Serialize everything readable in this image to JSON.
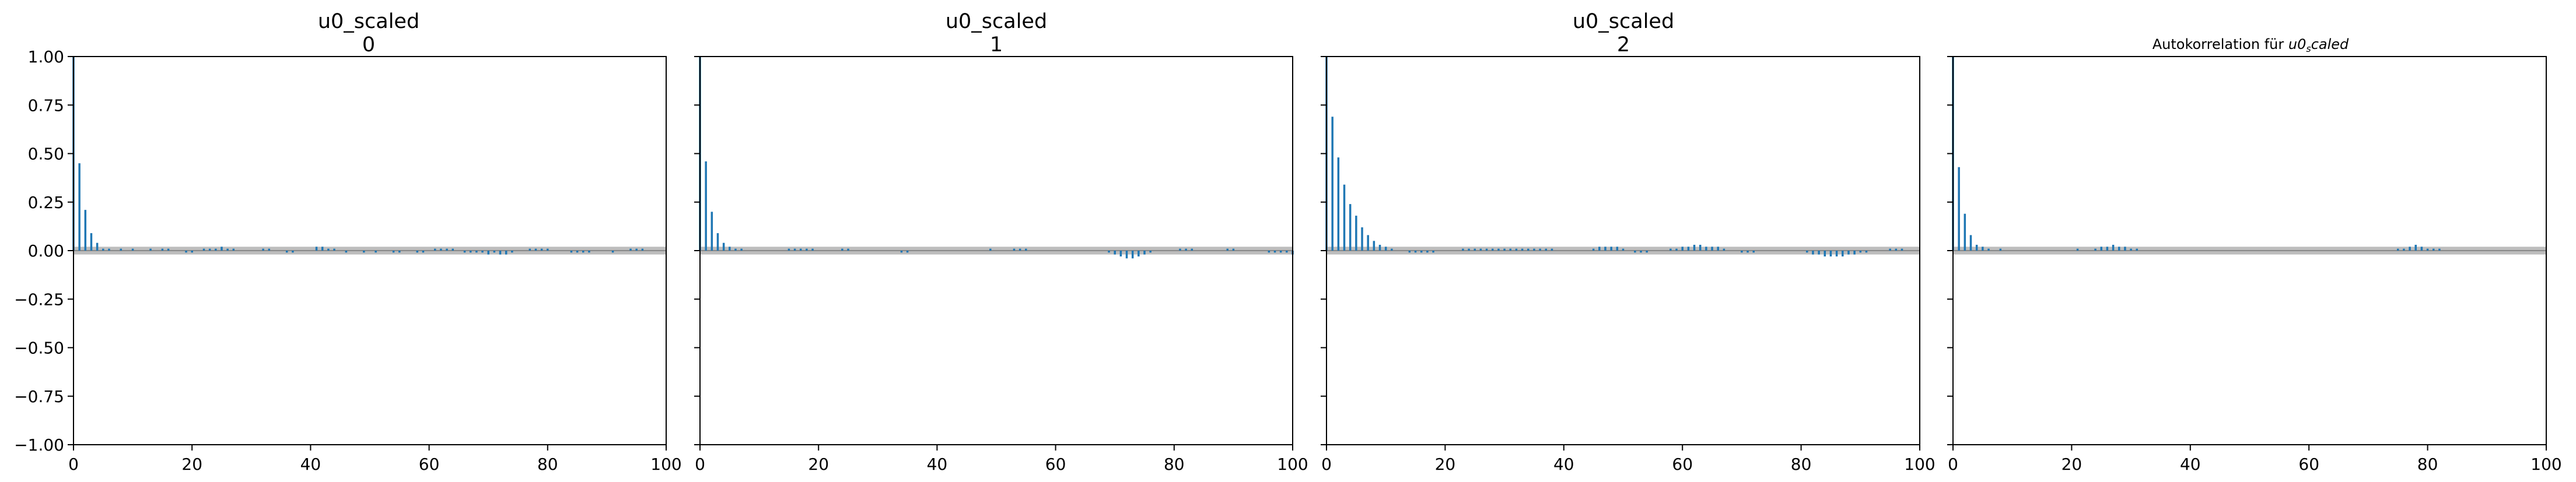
{
  "figure": {
    "stem_color": "#1f77b4",
    "band_color": "#bdbdbd",
    "axis_color": "#000000"
  },
  "chart_data": [
    {
      "type": "bar",
      "subtype": "autocorrelation",
      "title": "u0_scaled",
      "subtitle": "0",
      "xlabel": "",
      "ylabel": "",
      "xlim": [
        0,
        100
      ],
      "ylim": [
        -1.0,
        1.0
      ],
      "xticks": [
        "0",
        "20",
        "40",
        "60",
        "80",
        "100"
      ],
      "yticks": [
        "1.00",
        "0.75",
        "0.50",
        "0.25",
        "0.00",
        "−0.25",
        "−0.50",
        "−0.75",
        "−1.00"
      ],
      "confidence_band": [
        -0.02,
        0.02
      ],
      "grid": false,
      "lags": [
        0,
        1,
        2,
        3,
        4,
        5,
        6,
        7,
        8,
        9,
        10,
        11,
        12,
        13,
        14,
        15,
        16,
        17,
        18,
        19,
        20,
        21,
        22,
        23,
        24,
        25,
        26,
        27,
        28,
        29,
        30,
        31,
        32,
        33,
        34,
        35,
        36,
        37,
        38,
        39,
        40,
        41,
        42,
        43,
        44,
        45,
        46,
        47,
        48,
        49,
        50,
        51,
        52,
        53,
        54,
        55,
        56,
        57,
        58,
        59,
        60,
        61,
        62,
        63,
        64,
        65,
        66,
        67,
        68,
        69,
        70,
        71,
        72,
        73,
        74,
        75,
        76,
        77,
        78,
        79,
        80,
        81,
        82,
        83,
        84,
        85,
        86,
        87,
        88,
        89,
        90,
        91,
        92,
        93,
        94,
        95,
        96,
        97,
        98,
        99,
        100
      ],
      "values": [
        1.0,
        0.45,
        0.21,
        0.09,
        0.04,
        0.01,
        0.01,
        0.0,
        0.01,
        0.0,
        0.01,
        0.0,
        0.0,
        0.01,
        0.0,
        0.01,
        0.01,
        0.0,
        0.0,
        -0.01,
        -0.01,
        0.0,
        0.01,
        0.01,
        0.01,
        0.02,
        0.01,
        0.01,
        0.0,
        0.0,
        0.0,
        0.0,
        0.01,
        0.01,
        0.0,
        0.0,
        -0.01,
        -0.01,
        0.0,
        0.0,
        0.0,
        0.02,
        0.02,
        0.01,
        0.01,
        0.0,
        -0.01,
        0.0,
        0.0,
        -0.01,
        0.0,
        -0.01,
        0.0,
        0.0,
        -0.01,
        -0.01,
        0.0,
        0.0,
        -0.01,
        -0.01,
        0.0,
        0.01,
        0.01,
        0.01,
        0.01,
        0.0,
        -0.01,
        -0.01,
        -0.01,
        -0.01,
        -0.02,
        -0.01,
        -0.02,
        -0.02,
        -0.01,
        0.0,
        0.0,
        0.01,
        0.01,
        0.01,
        0.01,
        0.0,
        0.0,
        0.0,
        -0.01,
        -0.01,
        -0.01,
        -0.01,
        0.0,
        0.0,
        0.0,
        -0.01,
        0.0,
        0.0,
        0.01,
        0.01,
        0.01,
        0.0,
        0.0,
        0.0,
        0.0
      ]
    },
    {
      "type": "bar",
      "subtype": "autocorrelation",
      "title": "u0_scaled",
      "subtitle": "1",
      "xlabel": "",
      "ylabel": "",
      "xlim": [
        0,
        100
      ],
      "ylim": [
        -1.0,
        1.0
      ],
      "xticks": [
        "0",
        "20",
        "40",
        "60",
        "80",
        "100"
      ],
      "confidence_band": [
        -0.02,
        0.02
      ],
      "grid": false,
      "lags": [
        0,
        1,
        2,
        3,
        4,
        5,
        6,
        7,
        8,
        9,
        10,
        11,
        12,
        13,
        14,
        15,
        16,
        17,
        18,
        19,
        20,
        21,
        22,
        23,
        24,
        25,
        26,
        27,
        28,
        29,
        30,
        31,
        32,
        33,
        34,
        35,
        36,
        37,
        38,
        39,
        40,
        41,
        42,
        43,
        44,
        45,
        46,
        47,
        48,
        49,
        50,
        51,
        52,
        53,
        54,
        55,
        56,
        57,
        58,
        59,
        60,
        61,
        62,
        63,
        64,
        65,
        66,
        67,
        68,
        69,
        70,
        71,
        72,
        73,
        74,
        75,
        76,
        77,
        78,
        79,
        80,
        81,
        82,
        83,
        84,
        85,
        86,
        87,
        88,
        89,
        90,
        91,
        92,
        93,
        94,
        95,
        96,
        97,
        98,
        99,
        100
      ],
      "values": [
        1.0,
        0.46,
        0.2,
        0.09,
        0.04,
        0.02,
        0.01,
        0.01,
        0.0,
        0.0,
        0.0,
        0.0,
        0.0,
        0.0,
        0.0,
        0.01,
        0.01,
        0.01,
        0.01,
        0.01,
        0.0,
        0.0,
        0.0,
        0.0,
        0.01,
        0.01,
        0.0,
        0.0,
        0.0,
        0.0,
        0.0,
        0.0,
        0.0,
        0.0,
        -0.01,
        -0.01,
        0.0,
        0.0,
        0.0,
        0.0,
        0.0,
        0.0,
        0.0,
        0.0,
        0.0,
        0.0,
        0.0,
        0.0,
        0.0,
        0.01,
        0.0,
        0.0,
        0.0,
        0.01,
        0.01,
        0.01,
        0.0,
        0.0,
        0.0,
        0.0,
        0.0,
        0.0,
        0.0,
        0.0,
        0.0,
        0.0,
        0.0,
        0.0,
        0.0,
        -0.01,
        -0.02,
        -0.03,
        -0.04,
        -0.04,
        -0.03,
        -0.02,
        -0.01,
        0.0,
        0.0,
        0.0,
        0.0,
        0.01,
        0.01,
        0.01,
        0.0,
        0.0,
        0.0,
        0.0,
        0.0,
        0.01,
        0.01,
        0.0,
        0.0,
        0.0,
        0.0,
        0.0,
        -0.01,
        -0.01,
        -0.01,
        -0.01,
        -0.02
      ]
    },
    {
      "type": "bar",
      "subtype": "autocorrelation",
      "title": "u0_scaled",
      "subtitle": "2",
      "xlabel": "",
      "ylabel": "",
      "xlim": [
        0,
        100
      ],
      "ylim": [
        -1.0,
        1.0
      ],
      "xticks": [
        "0",
        "20",
        "40",
        "60",
        "80",
        "100"
      ],
      "confidence_band": [
        -0.02,
        0.02
      ],
      "grid": false,
      "lags": [
        0,
        1,
        2,
        3,
        4,
        5,
        6,
        7,
        8,
        9,
        10,
        11,
        12,
        13,
        14,
        15,
        16,
        17,
        18,
        19,
        20,
        21,
        22,
        23,
        24,
        25,
        26,
        27,
        28,
        29,
        30,
        31,
        32,
        33,
        34,
        35,
        36,
        37,
        38,
        39,
        40,
        41,
        42,
        43,
        44,
        45,
        46,
        47,
        48,
        49,
        50,
        51,
        52,
        53,
        54,
        55,
        56,
        57,
        58,
        59,
        60,
        61,
        62,
        63,
        64,
        65,
        66,
        67,
        68,
        69,
        70,
        71,
        72,
        73,
        74,
        75,
        76,
        77,
        78,
        79,
        80,
        81,
        82,
        83,
        84,
        85,
        86,
        87,
        88,
        89,
        90,
        91,
        92,
        93,
        94,
        95,
        96,
        97,
        98,
        99,
        100
      ],
      "values": [
        1.0,
        0.69,
        0.48,
        0.34,
        0.24,
        0.18,
        0.12,
        0.08,
        0.05,
        0.03,
        0.02,
        0.01,
        0.0,
        0.0,
        -0.01,
        -0.01,
        -0.01,
        -0.01,
        -0.01,
        0.0,
        0.0,
        0.0,
        0.0,
        0.01,
        0.01,
        0.01,
        0.01,
        0.01,
        0.01,
        0.01,
        0.01,
        0.01,
        0.01,
        0.01,
        0.01,
        0.01,
        0.01,
        0.01,
        0.01,
        0.0,
        0.0,
        0.0,
        0.0,
        0.0,
        0.0,
        0.01,
        0.02,
        0.02,
        0.02,
        0.02,
        0.01,
        0.0,
        -0.01,
        -0.01,
        -0.01,
        0.0,
        0.0,
        0.0,
        0.01,
        0.01,
        0.02,
        0.02,
        0.03,
        0.03,
        0.02,
        0.02,
        0.02,
        0.01,
        0.0,
        0.0,
        -0.01,
        -0.01,
        -0.01,
        0.0,
        0.0,
        0.0,
        0.0,
        0.0,
        0.0,
        0.0,
        0.0,
        -0.01,
        -0.02,
        -0.02,
        -0.03,
        -0.03,
        -0.03,
        -0.03,
        -0.02,
        -0.02,
        -0.01,
        -0.01,
        0.0,
        0.0,
        0.0,
        0.01,
        0.01,
        0.01,
        0.0,
        0.0,
        0.0
      ]
    },
    {
      "type": "bar",
      "subtype": "autocorrelation",
      "title": "Autokorrelation für u0_scaled",
      "title_prefix": "Autokorrelation für ",
      "title_math_base": "u0",
      "title_math_sub": "s",
      "title_math_tail": "caled",
      "xlabel": "",
      "ylabel": "",
      "xlim": [
        0,
        100
      ],
      "ylim": [
        -1.0,
        1.0
      ],
      "xticks": [
        "0",
        "20",
        "40",
        "60",
        "80",
        "100"
      ],
      "confidence_band": [
        -0.02,
        0.02
      ],
      "grid": false,
      "lags": [
        0,
        1,
        2,
        3,
        4,
        5,
        6,
        7,
        8,
        9,
        10,
        11,
        12,
        13,
        14,
        15,
        16,
        17,
        18,
        19,
        20,
        21,
        22,
        23,
        24,
        25,
        26,
        27,
        28,
        29,
        30,
        31,
        32,
        33,
        34,
        35,
        36,
        37,
        38,
        39,
        40,
        41,
        42,
        43,
        44,
        45,
        46,
        47,
        48,
        49,
        50,
        51,
        52,
        53,
        54,
        55,
        56,
        57,
        58,
        59,
        60,
        61,
        62,
        63,
        64,
        65,
        66,
        67,
        68,
        69,
        70,
        71,
        72,
        73,
        74,
        75,
        76,
        77,
        78,
        79,
        80,
        81,
        82,
        83,
        84,
        85,
        86,
        87,
        88,
        89,
        90,
        91,
        92,
        93,
        94,
        95,
        96,
        97,
        98,
        99,
        100
      ],
      "values": [
        1.0,
        0.43,
        0.19,
        0.08,
        0.03,
        0.02,
        0.01,
        0.0,
        0.01,
        0.0,
        0.0,
        0.0,
        0.0,
        0.0,
        0.0,
        0.0,
        0.0,
        0.0,
        0.0,
        0.0,
        0.0,
        0.01,
        0.0,
        0.0,
        0.01,
        0.02,
        0.02,
        0.03,
        0.02,
        0.02,
        0.01,
        0.01,
        0.0,
        0.0,
        0.0,
        0.0,
        0.0,
        0.0,
        0.0,
        0.0,
        0.0,
        0.0,
        0.0,
        0.0,
        0.0,
        0.0,
        0.0,
        0.0,
        0.0,
        0.0,
        0.0,
        0.0,
        0.0,
        0.0,
        0.0,
        0.0,
        0.0,
        0.0,
        0.0,
        0.0,
        0.0,
        0.0,
        0.0,
        0.0,
        0.0,
        0.0,
        0.0,
        0.0,
        0.0,
        0.0,
        0.0,
        0.0,
        0.0,
        0.0,
        0.0,
        0.01,
        0.01,
        0.02,
        0.03,
        0.02,
        0.01,
        0.01,
        0.01,
        0.0,
        0.0,
        0.0,
        0.0,
        0.0,
        0.0,
        0.0,
        0.0,
        0.0,
        0.0,
        0.0,
        0.0,
        0.0,
        0.0,
        0.0,
        0.0,
        0.0,
        0.0
      ]
    }
  ]
}
